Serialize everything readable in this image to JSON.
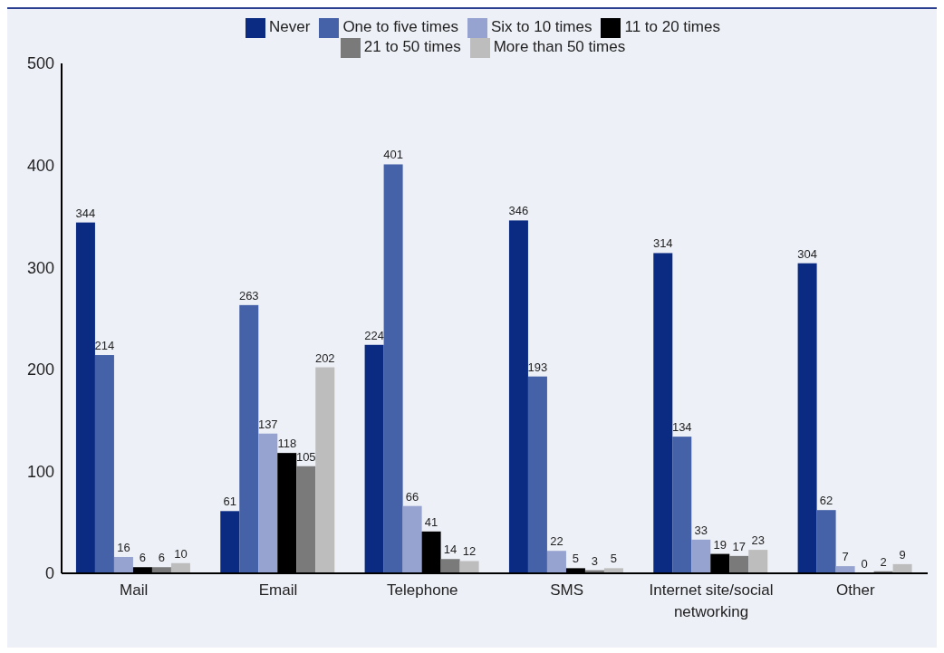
{
  "chart_data": {
    "type": "bar",
    "categories": [
      "Mail",
      "Email",
      "Telephone",
      "SMS",
      "Internet site/social networking",
      "Other"
    ],
    "series": [
      {
        "name": "Never",
        "color": "#0b2b83",
        "values": [
          344,
          61,
          224,
          346,
          314,
          304
        ]
      },
      {
        "name": "One to five times",
        "color": "#4562a8",
        "values": [
          214,
          263,
          401,
          193,
          134,
          62
        ]
      },
      {
        "name": "Six to 10 times",
        "color": "#96a3d0",
        "values": [
          16,
          137,
          66,
          22,
          33,
          7
        ]
      },
      {
        "name": "11 to 20 times",
        "color": "#000000",
        "values": [
          6,
          118,
          41,
          5,
          19,
          0
        ]
      },
      {
        "name": "21 to 50 times",
        "color": "#7a7a7a",
        "values": [
          6,
          105,
          14,
          3,
          17,
          2
        ]
      },
      {
        "name": "More than 50 times",
        "color": "#bdbdbd",
        "values": [
          10,
          202,
          12,
          5,
          23,
          9
        ]
      }
    ],
    "ylim": [
      0,
      500
    ],
    "yticks": [
      0,
      100,
      200,
      300,
      400,
      500
    ],
    "grid": false,
    "legend": "top",
    "data_labels": true
  }
}
